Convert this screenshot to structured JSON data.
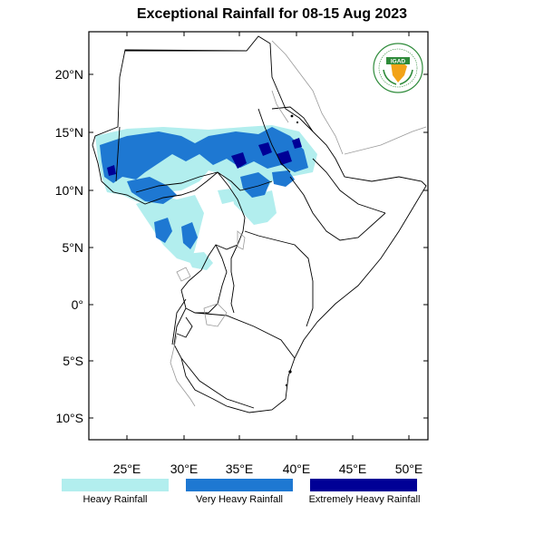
{
  "title": "Exceptional Rainfall for 08-15 Aug 2023",
  "chart_data": {
    "type": "map",
    "title": "Exceptional Rainfall for 08-15 Aug 2023",
    "lon_range": [
      21.5,
      51.5
    ],
    "lat_range": [
      -12,
      24
    ],
    "x_ticks": [
      {
        "value": 25,
        "label": "25°E"
      },
      {
        "value": 30,
        "label": "30°E"
      },
      {
        "value": 35,
        "label": "35°E"
      },
      {
        "value": 40,
        "label": "40°E"
      },
      {
        "value": 45,
        "label": "45°E"
      },
      {
        "value": 50,
        "label": "50°E"
      }
    ],
    "y_ticks": [
      {
        "value": 20,
        "label": "20°N"
      },
      {
        "value": 15,
        "label": "15°N"
      },
      {
        "value": 10,
        "label": "10°N"
      },
      {
        "value": 5,
        "label": "5°N"
      },
      {
        "value": 0,
        "label": "0°"
      },
      {
        "value": -5,
        "label": "5°S"
      },
      {
        "value": -10,
        "label": "10°S"
      }
    ],
    "legend": [
      {
        "label": "Heavy Rainfall",
        "color": "#b2eeee"
      },
      {
        "label": "Very Heavy Rainfall",
        "color": "#1e78d2"
      },
      {
        "label": "Extremely Heavy Rainfall",
        "color": "#000096"
      }
    ]
  },
  "logo": {
    "text": "IGAD",
    "colors": {
      "ring": "#2e8b3a",
      "banner": "#2e8b3a",
      "continent": "#f2a317"
    }
  }
}
